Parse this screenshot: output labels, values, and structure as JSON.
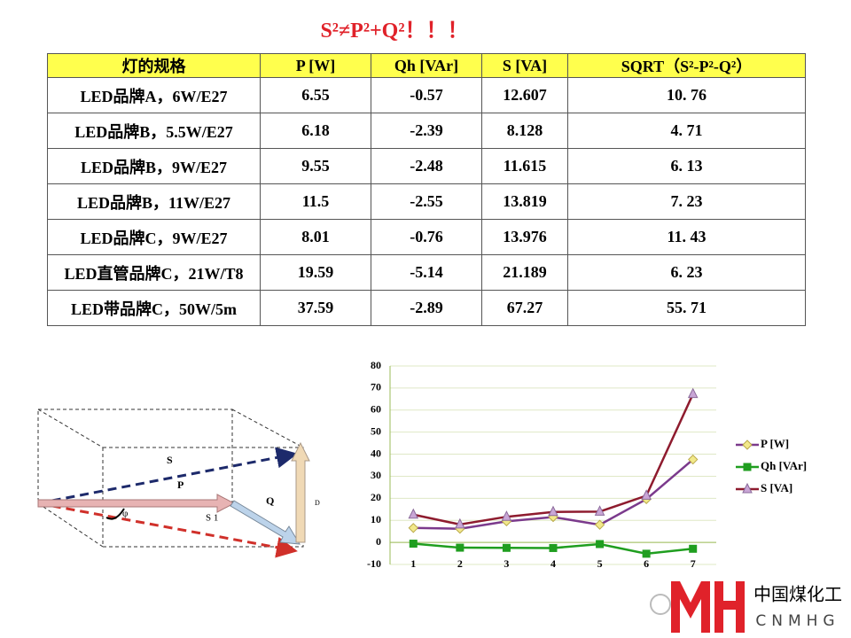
{
  "title": "S²≠P²+Q²！！！",
  "table": {
    "header": [
      "灯的规格",
      "P [W]",
      "Qh [VAr]",
      "S [VA]",
      "SQRT（S²-P²-Q²）"
    ],
    "rows": [
      [
        "LED品牌A，6W/E27",
        "6.55",
        "-0.57",
        "12.607",
        "10. 76"
      ],
      [
        "LED品牌B，5.5W/E27",
        "6.18",
        "-2.39",
        "8.128",
        "4. 71"
      ],
      [
        "LED品牌B，9W/E27",
        "9.55",
        "-2.48",
        "11.615",
        "6. 13"
      ],
      [
        "LED品牌B，11W/E27",
        "11.5",
        "-2.55",
        "13.819",
        "7. 23"
      ],
      [
        "LED品牌C，9W/E27",
        "8.01",
        "-0.76",
        "13.976",
        "11. 43"
      ],
      [
        "LED直管品牌C，21W/T8",
        "19.59",
        "-5.14",
        "21.189",
        "6. 23"
      ],
      [
        "LED带品牌C，50W/5m",
        "37.59",
        "-2.89",
        "67.27",
        "55. 71"
      ]
    ]
  },
  "diagram": {
    "labels": {
      "s": "S",
      "p": "P",
      "q": "Q",
      "s1": "S 1",
      "phi": "φ",
      "d": "D"
    }
  },
  "chart_data": {
    "type": "line",
    "categories": [
      "1",
      "2",
      "3",
      "4",
      "5",
      "6",
      "7"
    ],
    "series": [
      {
        "name": "P [W]",
        "color": "#7b3a8c",
        "marker": "diamond",
        "marker_color": "#f2e98a",
        "values": [
          6.55,
          6.18,
          9.55,
          11.5,
          8.01,
          19.59,
          37.59
        ]
      },
      {
        "name": "Qh [VAr]",
        "color": "#1f9e1f",
        "marker": "square",
        "marker_color": "#1f9e1f",
        "values": [
          -0.57,
          -2.39,
          -2.48,
          -2.55,
          -0.76,
          -5.14,
          -2.89
        ]
      },
      {
        "name": "S [VA]",
        "color": "#8e1b2e",
        "marker": "triangle",
        "marker_color": "#c9a6d6",
        "values": [
          12.607,
          8.128,
          11.615,
          13.819,
          13.976,
          21.189,
          67.27
        ]
      }
    ],
    "ylim": [
      -10,
      80
    ],
    "yticks": [
      -10,
      0,
      10,
      20,
      30,
      40,
      50,
      60,
      70,
      80
    ],
    "grid": true,
    "legend": "right"
  },
  "logo": {
    "cn": "中国煤化工",
    "en": "CNMHG"
  }
}
